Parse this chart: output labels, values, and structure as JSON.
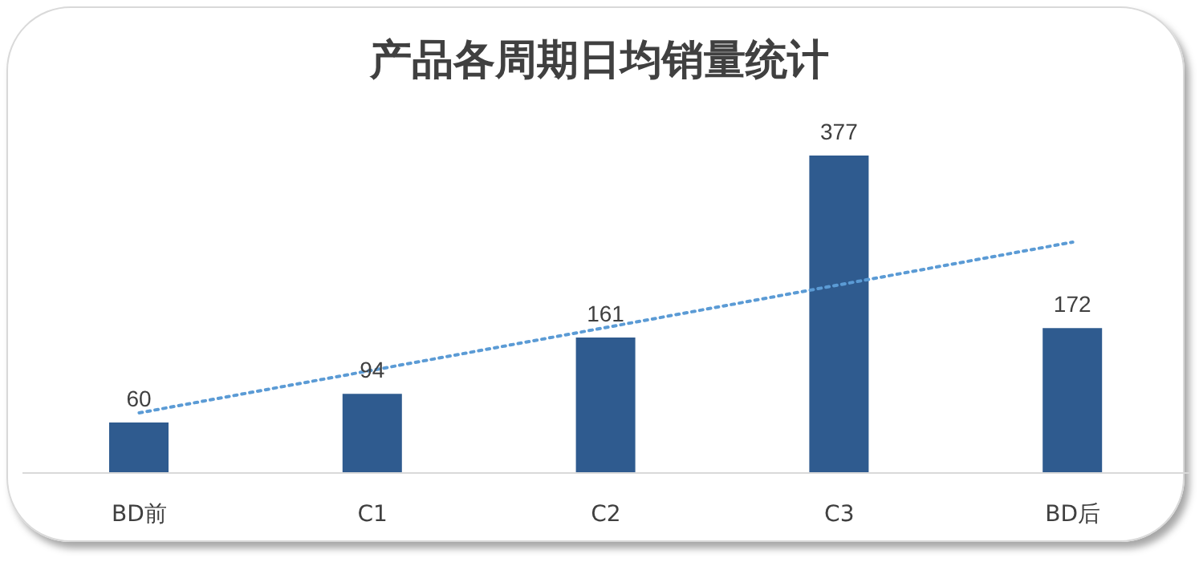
{
  "chart_data": {
    "type": "bar",
    "title": "产品各周期日均销量统计",
    "categories": [
      "BD前",
      "C1",
      "C2",
      "C3",
      "BD后"
    ],
    "series": [
      {
        "color": "#2f5b8f",
        "values": [
          60,
          94,
          161,
          377,
          172
        ],
        "value_labels": [
          "60",
          "94",
          "161",
          "377",
          "172"
        ]
      },
      {
        "type": "line",
        "color": "#5b9bd5",
        "line_style": "dotted",
        "marker": "none",
        "values": [
          71.4,
          122.1,
          172.8,
          223.5,
          274.2
        ]
      }
    ],
    "grid": false
  }
}
